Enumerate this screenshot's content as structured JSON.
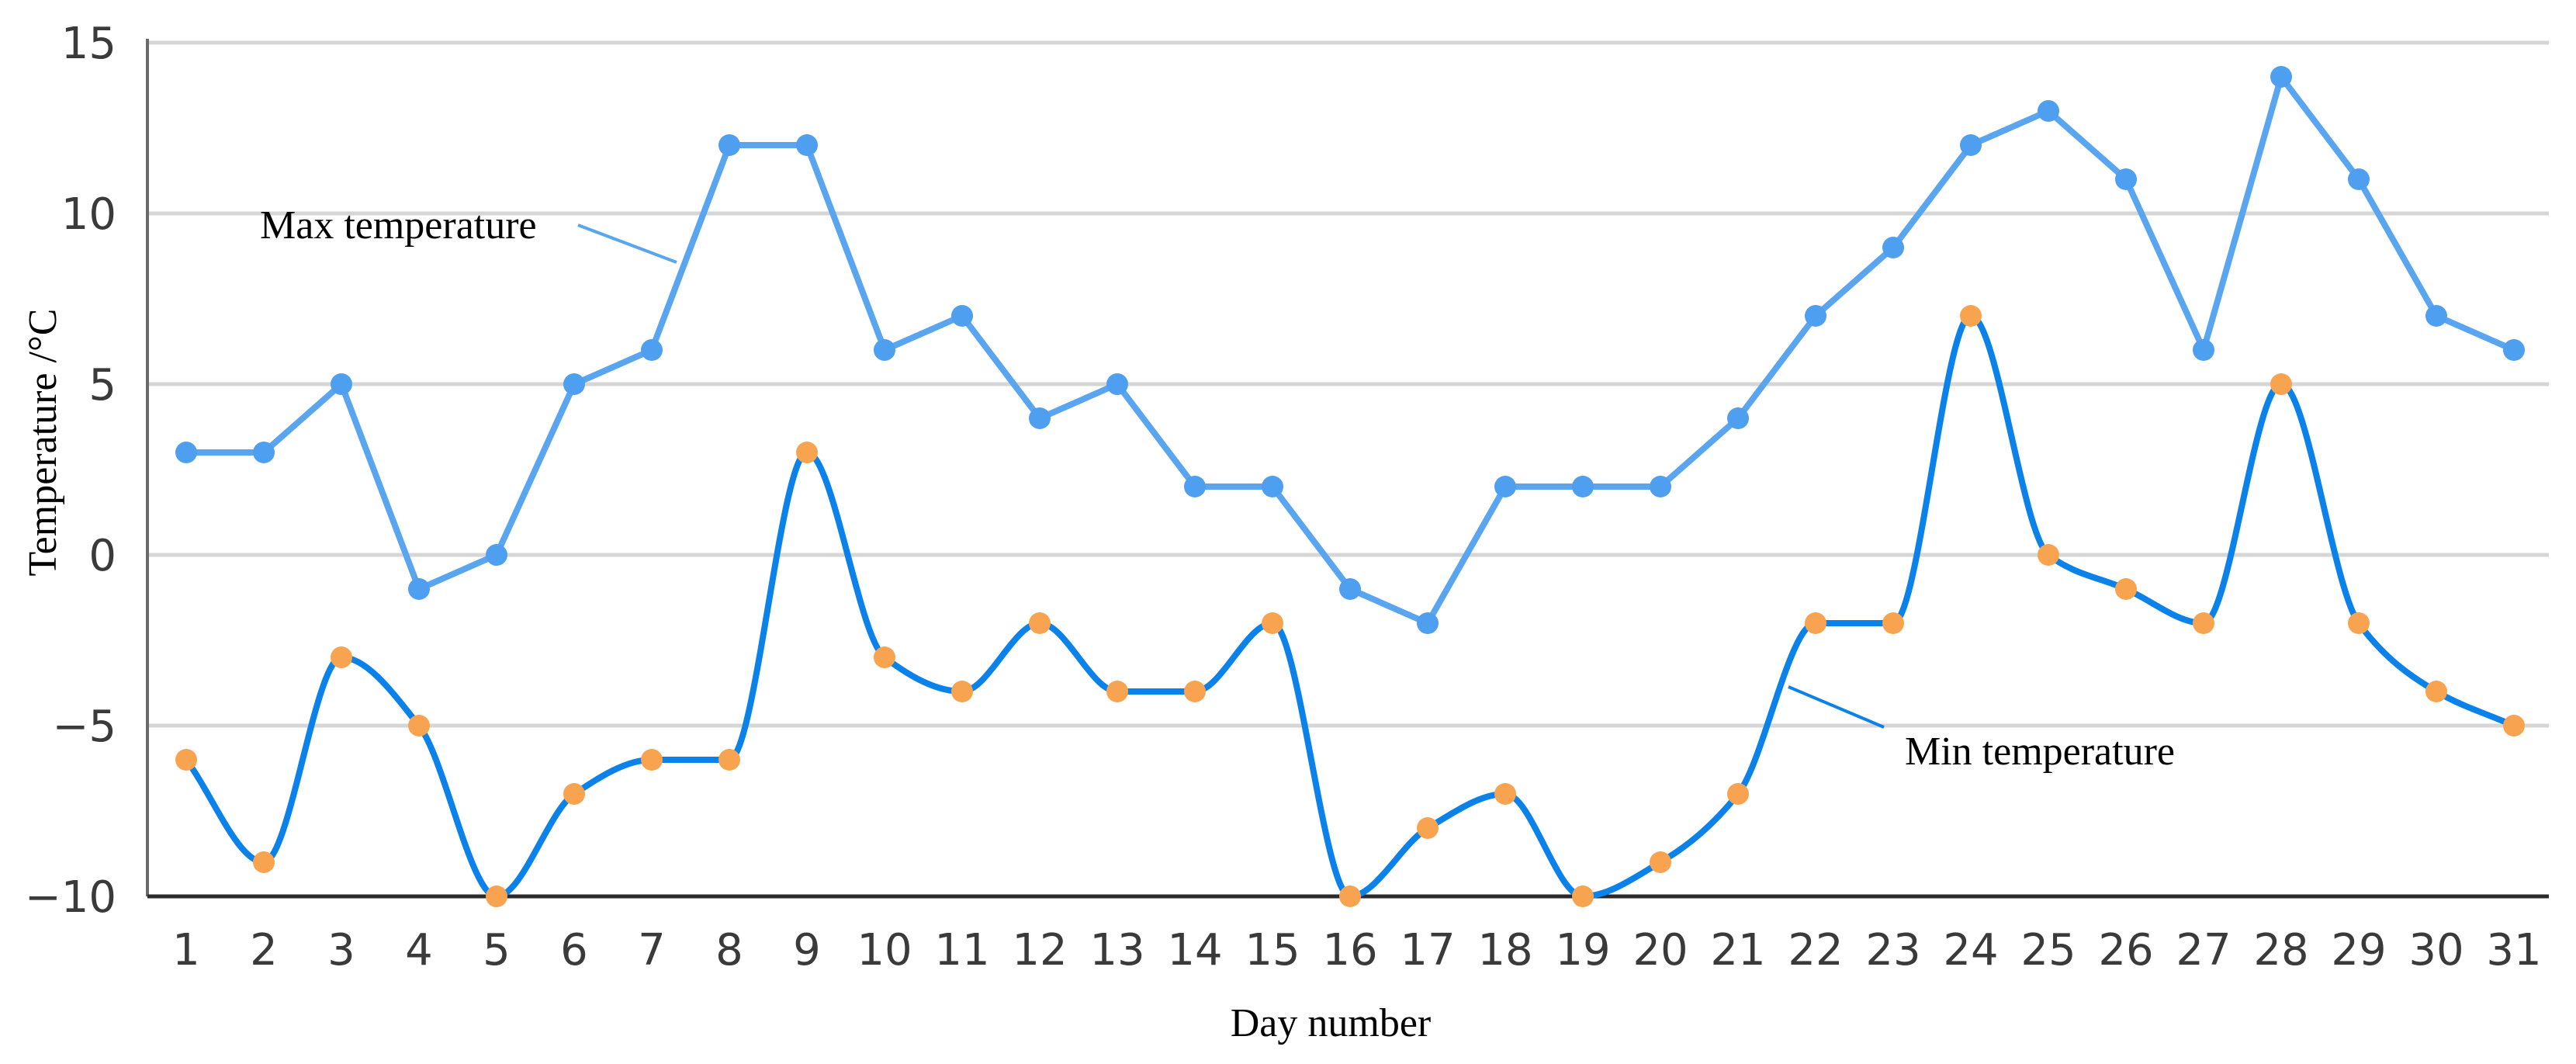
{
  "chart_data": {
    "type": "line",
    "xlabel": "Day number",
    "ylabel": "Temperature /°C",
    "xlim": [
      1,
      31
    ],
    "ylim": [
      -10,
      15
    ],
    "y_ticks": [
      -10,
      -5,
      0,
      5,
      10,
      15
    ],
    "y_tick_labels": [
      "−10",
      "−5",
      "0",
      "5",
      "10",
      "15"
    ],
    "grid": "horizontal",
    "x": [
      1,
      2,
      3,
      4,
      5,
      6,
      7,
      8,
      9,
      10,
      11,
      12,
      13,
      14,
      15,
      16,
      17,
      18,
      19,
      20,
      21,
      22,
      23,
      24,
      25,
      26,
      27,
      28,
      29,
      30,
      31
    ],
    "series": [
      {
        "name": "Max temperature",
        "style": "straight",
        "line_color": "#5aa5f0",
        "marker_color": "#4e9ff0",
        "values": [
          3,
          3,
          5,
          -1,
          0,
          5,
          6,
          12,
          12,
          6,
          7,
          4,
          5,
          2,
          2,
          -1,
          -2,
          2,
          2,
          2,
          4,
          7,
          9,
          12,
          13,
          11,
          6,
          14,
          11,
          7,
          6
        ]
      },
      {
        "name": "Min temperature",
        "style": "smooth",
        "line_color": "#0a82ea",
        "marker_color": "#f8a350",
        "values": [
          -6,
          -9,
          -3,
          -5,
          -10,
          -7,
          -6,
          -6,
          3,
          -3,
          -4,
          -2,
          -4,
          -4,
          -2,
          -10,
          -8,
          -7,
          -10,
          -9,
          -7,
          -2,
          -2,
          7,
          0,
          -1,
          -2,
          5,
          -2,
          -4,
          -5
        ]
      }
    ]
  }
}
